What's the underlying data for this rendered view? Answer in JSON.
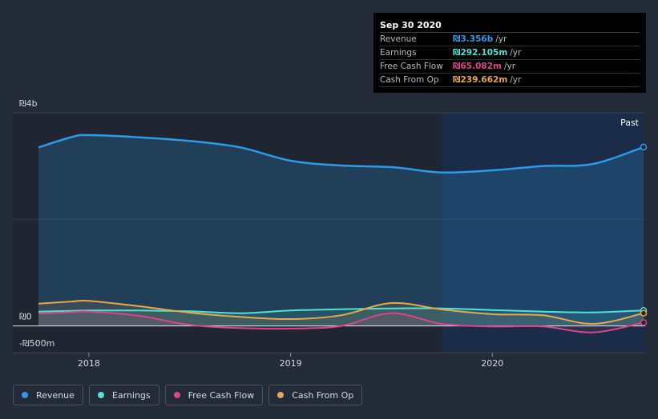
{
  "tooltip": {
    "date": "Sep 30 2020",
    "rows": [
      {
        "label": "Revenue",
        "value": "₪3.356b",
        "unit": "/yr",
        "color": "#2d9be7"
      },
      {
        "label": "Earnings",
        "value": "₪292.105m",
        "unit": "/yr",
        "color": "#4fe3d4"
      },
      {
        "label": "Free Cash Flow",
        "value": "₪65.082m",
        "unit": "/yr",
        "color": "#d9468a"
      },
      {
        "label": "Cash From Op",
        "value": "₪239.662m",
        "unit": "/yr",
        "color": "#e8a849"
      }
    ]
  },
  "legend": [
    {
      "label": "Revenue",
      "color": "#2d9be7"
    },
    {
      "label": "Earnings",
      "color": "#4fe3d4"
    },
    {
      "label": "Free Cash Flow",
      "color": "#d9468a"
    },
    {
      "label": "Cash From Op",
      "color": "#e8a849"
    }
  ],
  "chart_data": {
    "type": "area",
    "title": "",
    "ylim": [
      -500,
      4000
    ],
    "y_unit": "₪ millions",
    "y_tick_labels": [
      {
        "label": "₪4b",
        "value": 4000
      },
      {
        "label": "₪0",
        "value": 0
      },
      {
        "label": "-₪500m",
        "value": -500
      }
    ],
    "x_tick_labels": [
      {
        "label": "2018",
        "value": 2018.0
      },
      {
        "label": "2019",
        "value": 2019.0
      },
      {
        "label": "2020",
        "value": 2020.0
      }
    ],
    "xlim": [
      2017.75,
      2020.75
    ],
    "past_label": "Past",
    "past_region_start": 2019.75,
    "x": [
      2017.75,
      2017.92,
      2018.0,
      2018.25,
      2018.5,
      2018.75,
      2019.0,
      2019.25,
      2019.5,
      2019.75,
      2020.0,
      2020.25,
      2020.5,
      2020.75
    ],
    "series": [
      {
        "name": "Revenue",
        "color": "#2d9be7",
        "values": [
          3350,
          3550,
          3580,
          3540,
          3470,
          3350,
          3100,
          3010,
          2980,
          2880,
          2920,
          3000,
          3040,
          3356
        ]
      },
      {
        "name": "Earnings",
        "color": "#4fe3d4",
        "values": [
          270,
          285,
          290,
          290,
          275,
          240,
          290,
          315,
          330,
          330,
          300,
          270,
          255,
          292
        ]
      },
      {
        "name": "Free Cash Flow",
        "color": "#d9468a",
        "values": [
          230,
          260,
          270,
          190,
          20,
          -40,
          -50,
          0,
          240,
          40,
          -10,
          -10,
          -120,
          65
        ]
      },
      {
        "name": "Cash From Op",
        "color": "#e8a849",
        "values": [
          420,
          460,
          470,
          370,
          250,
          170,
          130,
          200,
          430,
          310,
          220,
          200,
          40,
          240
        ]
      }
    ]
  }
}
